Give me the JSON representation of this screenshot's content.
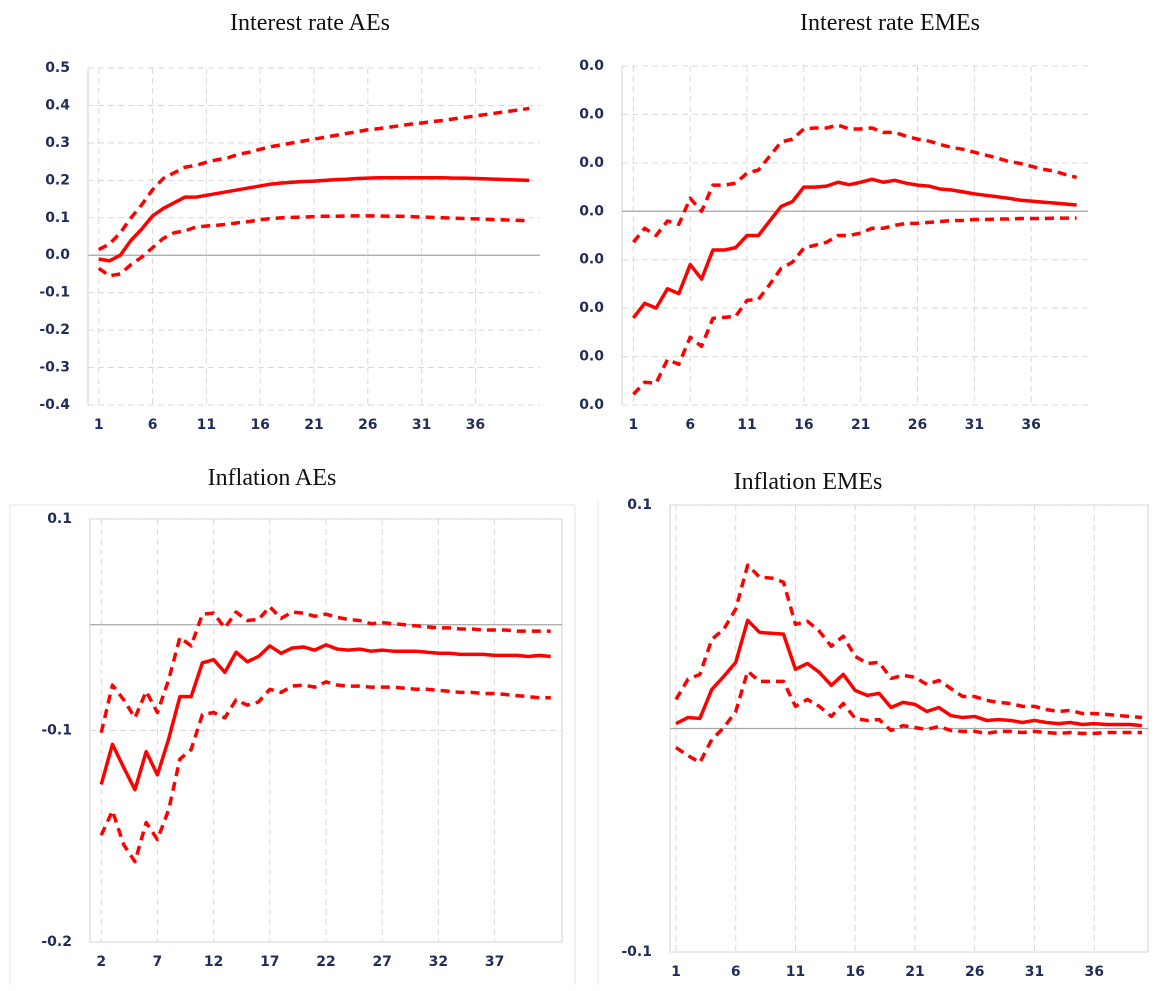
{
  "chart_data": [
    {
      "type": "line",
      "title": "Interest rate AEs",
      "x": [
        1,
        2,
        3,
        4,
        5,
        6,
        7,
        8,
        9,
        10,
        11,
        12,
        13,
        14,
        15,
        16,
        17,
        18,
        19,
        20,
        21,
        22,
        23,
        24,
        25,
        26,
        27,
        28,
        29,
        30,
        31,
        32,
        33,
        34,
        35,
        36,
        37,
        38,
        39,
        40,
        41
      ],
      "xlim": [
        0,
        42
      ],
      "xticks": [
        1,
        6,
        11,
        16,
        21,
        26,
        31,
        36
      ],
      "ylim": [
        -0.4,
        0.5
      ],
      "yticks": [
        0.5,
        0.4,
        0.3,
        0.2,
        0.1,
        {
          "value": 0,
          "label": "0.0"
        },
        -0.1,
        -0.2,
        -0.3,
        -0.4
      ],
      "grid": true,
      "frame": false,
      "series": [
        {
          "color": "#ff0000",
          "line_style": "dashed",
          "values": [
            0.015,
            0.03,
            0.06,
            0.1,
            0.135,
            0.175,
            0.205,
            0.22,
            0.235,
            0.24,
            0.248,
            0.255,
            0.26,
            0.27,
            0.275,
            0.283,
            0.29,
            0.295,
            0.3,
            0.305,
            0.31,
            0.315,
            0.32,
            0.325,
            0.33,
            0.335,
            0.338,
            0.342,
            0.346,
            0.35,
            0.353,
            0.357,
            0.36,
            0.364,
            0.368,
            0.372,
            0.376,
            0.38,
            0.384,
            0.388,
            0.392
          ]
        },
        {
          "color": "#ff0000",
          "line_style": "solid",
          "values": [
            -0.01,
            -0.015,
            0,
            0.04,
            0.07,
            0.105,
            0.125,
            0.14,
            0.155,
            0.155,
            0.16,
            0.165,
            0.17,
            0.175,
            0.18,
            0.185,
            0.19,
            0.193,
            0.195,
            0.197,
            0.198,
            0.2,
            0.202,
            0.203,
            0.205,
            0.206,
            0.207,
            0.207,
            0.207,
            0.207,
            0.207,
            0.207,
            0.207,
            0.206,
            0.206,
            0.205,
            0.204,
            0.203,
            0.202,
            0.201,
            0.2
          ]
        },
        {
          "color": "#ff0000",
          "line_style": "dashed",
          "values": [
            -0.035,
            -0.055,
            -0.05,
            -0.025,
            -0.005,
            0.02,
            0.045,
            0.06,
            0.065,
            0.075,
            0.078,
            0.08,
            0.083,
            0.087,
            0.09,
            0.095,
            0.098,
            0.1,
            0.101,
            0.102,
            0.103,
            0.104,
            0.104,
            0.105,
            0.105,
            0.105,
            0.105,
            0.104,
            0.104,
            0.103,
            0.102,
            0.101,
            0.1,
            0.099,
            0.098,
            0.097,
            0.096,
            0.095,
            0.094,
            0.093,
            0.092
          ]
        }
      ]
    },
    {
      "type": "line",
      "title": "Interest rate EMEs",
      "x": [
        1,
        2,
        3,
        4,
        5,
        6,
        7,
        8,
        9,
        10,
        11,
        12,
        13,
        14,
        15,
        16,
        17,
        18,
        19,
        20,
        21,
        22,
        23,
        24,
        25,
        26,
        27,
        28,
        29,
        30,
        31,
        32,
        33,
        34,
        35,
        36,
        37,
        38,
        39,
        40
      ],
      "xlim": [
        0,
        41
      ],
      "xticks": [
        1,
        6,
        11,
        16,
        21,
        26,
        31,
        36
      ],
      "ylim": [
        -0.04,
        0.03
      ],
      "yticks": [
        {
          "value": 0.03,
          "label": "0.0"
        },
        {
          "value": 0.02,
          "label": "0.0"
        },
        {
          "value": 0.01,
          "label": "0.0"
        },
        {
          "value": 0,
          "label": "0.0"
        },
        {
          "value": -0.01,
          "label": "0.0"
        },
        {
          "value": -0.02,
          "label": "0.0"
        },
        {
          "value": -0.03,
          "label": "0.0"
        },
        {
          "value": -0.04,
          "label": "0.0"
        }
      ],
      "grid": true,
      "frame": false,
      "series": [
        {
          "color": "#ff0000",
          "line_style": "dashed",
          "values": [
            -0.0064,
            -0.0035,
            -0.005,
            -0.002,
            -0.0027,
            0.0027,
            0,
            0.0054,
            0.0054,
            0.0058,
            0.0079,
            0.0085,
            0.0114,
            0.0143,
            0.0149,
            0.017,
            0.0172,
            0.0172,
            0.0178,
            0.017,
            0.017,
            0.0172,
            0.0163,
            0.0163,
            0.0155,
            0.0149,
            0.0145,
            0.0138,
            0.0132,
            0.0128,
            0.0122,
            0.0116,
            0.011,
            0.0103,
            0.0099,
            0.0093,
            0.0087,
            0.0083,
            0.0076,
            0.007
          ]
        },
        {
          "color": "#ff0000",
          "line_style": "solid",
          "values": [
            -0.022,
            -0.019,
            -0.02,
            -0.016,
            -0.017,
            -0.011,
            -0.014,
            -0.008,
            -0.008,
            -0.0075,
            -0.005,
            -0.005,
            -0.002,
            0.001,
            0.002,
            0.005,
            0.005,
            0.0052,
            0.006,
            0.0055,
            0.006,
            0.0066,
            0.006,
            0.0064,
            0.0058,
            0.0054,
            0.0052,
            0.0046,
            0.0044,
            0.004,
            0.0036,
            0.0033,
            0.003,
            0.0027,
            0.0023,
            0.0021,
            0.0019,
            0.0017,
            0.0015,
            0.0013
          ]
        },
        {
          "color": "#ff0000",
          "line_style": "dashed",
          "values": [
            -0.0378,
            -0.0353,
            -0.0355,
            -0.0306,
            -0.0316,
            -0.026,
            -0.0279,
            -0.0221,
            -0.0219,
            -0.0217,
            -0.0184,
            -0.0182,
            -0.0151,
            -0.0118,
            -0.0105,
            -0.0076,
            -0.007,
            -0.0064,
            -0.005,
            -0.005,
            -0.0045,
            -0.0035,
            -0.0035,
            -0.0029,
            -0.0025,
            -0.0025,
            -0.0023,
            -0.0021,
            -0.0019,
            -0.0019,
            -0.0017,
            -0.0017,
            -0.0016,
            -0.0016,
            -0.0015,
            -0.0015,
            -0.0015,
            -0.0014,
            -0.0014,
            -0.0014
          ]
        }
      ]
    },
    {
      "type": "line",
      "title": "Inflation AEs",
      "x": [
        2,
        3,
        4,
        5,
        6,
        7,
        8,
        9,
        10,
        11,
        12,
        13,
        14,
        15,
        16,
        17,
        18,
        19,
        20,
        21,
        22,
        23,
        24,
        25,
        26,
        27,
        28,
        29,
        30,
        31,
        32,
        33,
        34,
        35,
        36,
        37,
        38,
        39,
        40,
        41,
        42
      ],
      "xlim": [
        1,
        43
      ],
      "xticks": [
        2,
        7,
        12,
        17,
        22,
        27,
        32,
        37
      ],
      "ylim": [
        -0.15,
        0.05
      ],
      "yticks": [
        {
          "value": 0.05,
          "label": "0.1"
        },
        {
          "value": -0.05,
          "label": "-0.1"
        },
        {
          "value": -0.15,
          "label": "-0.2"
        }
      ],
      "grid": true,
      "frame": true,
      "series": [
        {
          "color": "#ff0000",
          "line_style": "dashed",
          "values": [
            -0.051,
            -0.0285,
            -0.0355,
            -0.044,
            -0.0315,
            -0.0415,
            -0.026,
            -0.006,
            -0.01,
            0.005,
            0.0055,
            -0.0015,
            0.006,
            0.002,
            0.0025,
            0.0085,
            0.003,
            0.006,
            0.0055,
            0.004,
            0.005,
            0.0035,
            0.0025,
            0.002,
            0.0005,
            0.001,
            0.0005,
            0,
            -0.0005,
            -0.001,
            -0.0015,
            -0.0015,
            -0.002,
            -0.002,
            -0.0025,
            -0.0025,
            -0.0025,
            -0.003,
            -0.003,
            -0.003,
            -0.003
          ]
        },
        {
          "color": "#ff0000",
          "line_style": "solid",
          "values": [
            -0.0755,
            -0.0565,
            -0.0675,
            -0.078,
            -0.06,
            -0.071,
            -0.054,
            -0.034,
            -0.034,
            -0.018,
            -0.0165,
            -0.0225,
            -0.013,
            -0.0175,
            -0.015,
            -0.01,
            -0.0135,
            -0.011,
            -0.0105,
            -0.012,
            -0.0095,
            -0.0115,
            -0.012,
            -0.0115,
            -0.0125,
            -0.012,
            -0.0125,
            -0.0125,
            -0.0125,
            -0.013,
            -0.0135,
            -0.0135,
            -0.014,
            -0.014,
            -0.014,
            -0.0145,
            -0.0145,
            -0.0145,
            -0.015,
            -0.0145,
            -0.015
          ]
        },
        {
          "color": "#ff0000",
          "line_style": "dashed",
          "values": [
            -0.0995,
            -0.088,
            -0.104,
            -0.112,
            -0.0935,
            -0.1015,
            -0.0875,
            -0.0635,
            -0.059,
            -0.0425,
            -0.0415,
            -0.044,
            -0.0355,
            -0.038,
            -0.0365,
            -0.0305,
            -0.032,
            -0.029,
            -0.0285,
            -0.0295,
            -0.027,
            -0.0285,
            -0.029,
            -0.029,
            -0.0295,
            -0.0295,
            -0.0295,
            -0.03,
            -0.0305,
            -0.0305,
            -0.031,
            -0.0315,
            -0.032,
            -0.032,
            -0.0325,
            -0.0325,
            -0.033,
            -0.0335,
            -0.034,
            -0.0345,
            -0.0345
          ]
        }
      ]
    },
    {
      "type": "line",
      "title": "Inflation EMEs",
      "x": [
        1,
        2,
        3,
        4,
        5,
        6,
        7,
        8,
        9,
        10,
        11,
        12,
        13,
        14,
        15,
        16,
        17,
        18,
        19,
        20,
        21,
        22,
        23,
        24,
        25,
        26,
        27,
        28,
        29,
        30,
        31,
        32,
        33,
        34,
        35,
        36,
        37,
        38,
        39,
        40
      ],
      "xlim": [
        0.5,
        40.5
      ],
      "xticks": [
        1,
        6,
        11,
        16,
        21,
        26,
        31,
        36
      ],
      "ylim": [
        -0.1,
        0.1
      ],
      "yticks": [
        0.1,
        -0.1
      ],
      "grid": true,
      "frame": true,
      "series": [
        {
          "color": "#ff0000",
          "line_style": "dashed",
          "values": [
            0.013,
            0.022,
            0.0242,
            0.0399,
            0.0444,
            0.0534,
            0.0731,
            0.0677,
            0.0673,
            0.0655,
            0.0466,
            0.048,
            0.0435,
            0.0368,
            0.0413,
            0.0323,
            0.0291,
            0.0296,
            0.0224,
            0.0238,
            0.0229,
            0.0197,
            0.0215,
            0.0179,
            0.0143,
            0.0143,
            0.0126,
            0.0117,
            0.0112,
            0.0099,
            0.0099,
            0.0085,
            0.0076,
            0.0081,
            0.0067,
            0.0067,
            0.0063,
            0.0058,
            0.0054,
            0.0049
          ]
        },
        {
          "color": "#ff0000",
          "line_style": "solid",
          "values": [
            0.0022,
            0.0049,
            0.0045,
            0.0175,
            0.0233,
            0.0296,
            0.0484,
            0.043,
            0.0426,
            0.0422,
            0.0265,
            0.0291,
            0.0251,
            0.0193,
            0.0242,
            0.017,
            0.0148,
            0.0157,
            0.0094,
            0.0117,
            0.0108,
            0.0076,
            0.0094,
            0.0058,
            0.0049,
            0.0054,
            0.0036,
            0.004,
            0.0036,
            0.0027,
            0.0036,
            0.0027,
            0.0022,
            0.0027,
            0.0018,
            0.0022,
            0.0018,
            0.0018,
            0.0018,
            0.0013
          ]
        },
        {
          "color": "#ff0000",
          "line_style": "dashed",
          "values": [
            -0.0085,
            -0.0121,
            -0.0152,
            -0.0049,
            0.0004,
            0.0076,
            0.0256,
            0.0211,
            0.0211,
            0.0211,
            0.0099,
            0.013,
            0.0099,
            0.0054,
            0.0112,
            0.0045,
            0.0036,
            0.004,
            -0.0009,
            0.0013,
            0.0004,
            -0.0004,
            0.0009,
            -0.0009,
            -0.0013,
            -0.0013,
            -0.0022,
            -0.0013,
            -0.0013,
            -0.0018,
            -0.0013,
            -0.0018,
            -0.0022,
            -0.0018,
            -0.0022,
            -0.0022,
            -0.0018,
            -0.0018,
            -0.0018,
            -0.0018
          ]
        }
      ]
    }
  ]
}
